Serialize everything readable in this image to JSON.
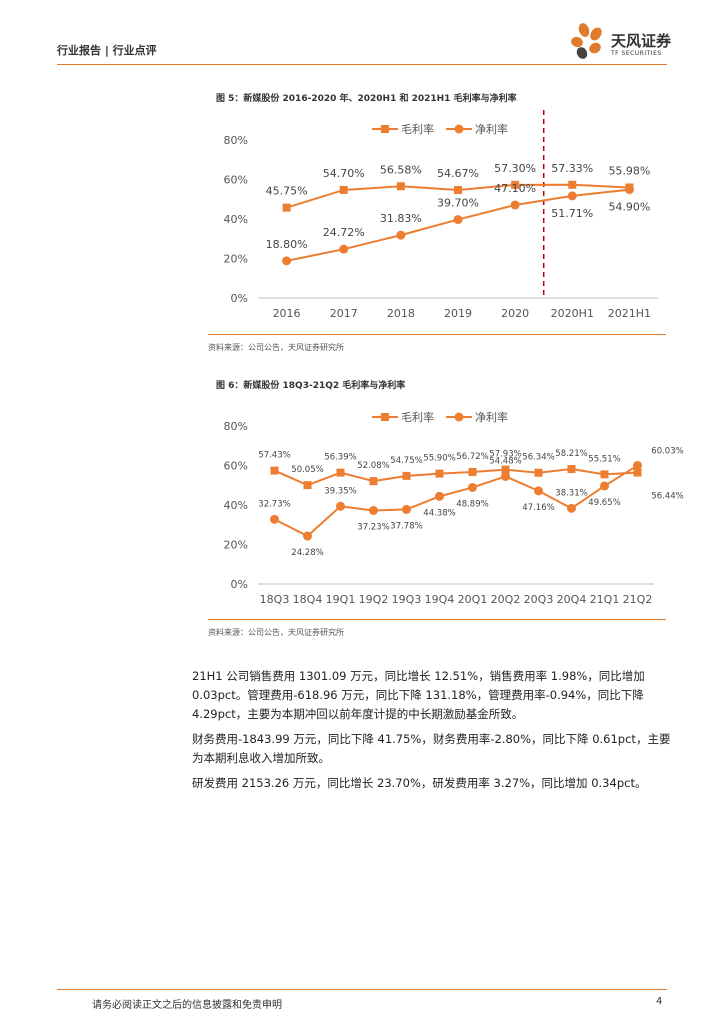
{
  "header": {
    "left": "行业报告 | 行业点评",
    "logo_text": "天风证券",
    "logo_sub": "TF SECURITIES"
  },
  "colors": {
    "accent": "#E07B2E",
    "series": "#ED7D31",
    "divider": "#C00000"
  },
  "chart_data": [
    {
      "type": "line",
      "title": "图 5：新媒股份 2016-2020 年、2020H1 和 2021H1 毛利率与净利率",
      "categories": [
        "2016",
        "2017",
        "2018",
        "2019",
        "2020",
        "2020H1",
        "2021H1"
      ],
      "series": [
        {
          "name": "毛利率",
          "values": [
            45.75,
            54.7,
            56.58,
            54.67,
            57.3,
            57.33,
            55.98
          ],
          "labels": [
            "45.75%",
            "54.70%",
            "56.58%",
            "54.67%",
            "57.30%",
            "57.33%",
            "55.98%"
          ]
        },
        {
          "name": "净利率",
          "values": [
            18.8,
            24.72,
            31.83,
            39.7,
            47.1,
            51.71,
            54.9
          ],
          "labels": [
            "18.80%",
            "24.72%",
            "31.83%",
            "39.70%",
            "47.10%",
            "51.71%",
            "54.90%"
          ]
        }
      ],
      "ylim": [
        0,
        80
      ],
      "yticks": [
        "0%",
        "20%",
        "40%",
        "60%",
        "80%"
      ],
      "legend": "top",
      "divider_between": [
        "2020",
        "2020H1"
      ]
    },
    {
      "type": "line",
      "title": "图 6：新媒股份 18Q3-21Q2 毛利率与净利率",
      "categories": [
        "18Q3",
        "18Q4",
        "19Q1",
        "19Q2",
        "19Q3",
        "19Q4",
        "20Q1",
        "20Q2",
        "20Q3",
        "20Q4",
        "21Q1",
        "21Q2"
      ],
      "series": [
        {
          "name": "毛利率",
          "values": [
            57.43,
            50.05,
            56.39,
            52.08,
            54.75,
            55.9,
            56.72,
            57.93,
            56.34,
            58.21,
            55.51,
            56.44
          ],
          "labels": [
            "57.43%",
            "50.05%",
            "56.39%",
            "52.08%",
            "54.75%",
            "55.90%",
            "56.72%",
            "57.93%",
            "56.34%",
            "58.21%",
            "55.51%",
            "56.44%"
          ]
        },
        {
          "name": "净利率",
          "values": [
            32.73,
            24.28,
            39.35,
            37.23,
            37.78,
            44.38,
            48.89,
            54.48,
            47.16,
            38.31,
            49.65,
            60.03
          ],
          "labels": [
            "32.73%",
            "24.28%",
            "39.35%",
            "37.23%",
            "37.78%",
            "44.38%",
            "48.89%",
            "54.48%",
            "47.16%",
            "38.31%",
            "49.65%",
            "60.03%"
          ]
        }
      ],
      "ylim": [
        0,
        80
      ],
      "yticks": [
        "0%",
        "20%",
        "40%",
        "60%",
        "80%"
      ],
      "legend": "top"
    }
  ],
  "source_text": "资料来源：公司公告，天风证券研究所",
  "paragraphs": [
    "21H1 公司销售费用 1301.09 万元，同比增长 12.51%，销售费用率 1.98%，同比增加 0.03pct。管理费用-618.96 万元，同比下降 131.18%，管理费用率-0.94%，同比下降 4.29pct，主要为本期冲回以前年度计提的中长期激励基金所致。",
    "财务费用-1843.99 万元，同比下降 41.75%，财务费用率-2.80%，同比下降 0.61pct，主要为本期利息收入增加所致。",
    "研发费用 2153.26 万元，同比增长 23.70%，研发费用率 3.27%，同比增加 0.34pct。"
  ],
  "footer": {
    "text": "请务必阅读正文之后的信息披露和免责申明",
    "page": "4"
  }
}
